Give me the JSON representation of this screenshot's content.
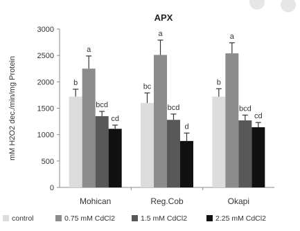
{
  "chart_data": {
    "type": "bar",
    "title": "APX",
    "ylabel": "mM H2O2 dec./min/mg Protein",
    "xlabel": "",
    "ylim": [
      0,
      3000
    ],
    "yticks": [
      0,
      500,
      1000,
      1500,
      2000,
      2500,
      3000
    ],
    "categories": [
      "Mohican",
      "Reg.Cob",
      "Okapi"
    ],
    "grid": false,
    "legend_position": "bottom",
    "series": [
      {
        "name": "control",
        "color": "#dcdcdc",
        "values": [
          1720,
          1600,
          1720
        ],
        "errors": [
          140,
          190,
          150
        ],
        "labels": [
          "b",
          "bc",
          "b"
        ]
      },
      {
        "name": "0.75 mM CdCl2",
        "color": "#8c8c8c",
        "values": [
          2250,
          2510,
          2540
        ],
        "errors": [
          240,
          280,
          200
        ],
        "labels": [
          "a",
          "a",
          "a"
        ]
      },
      {
        "name": "1.5 mM CdCl2",
        "color": "#585858",
        "values": [
          1350,
          1280,
          1270
        ],
        "errors": [
          90,
          110,
          100
        ],
        "labels": [
          "bcd",
          "bcd",
          "bcd"
        ]
      },
      {
        "name": "2.25 mM CdCl2",
        "color": "#111111",
        "values": [
          1110,
          880,
          1140
        ],
        "errors": [
          70,
          150,
          90
        ],
        "labels": [
          "cd",
          "d",
          "cd"
        ]
      }
    ]
  }
}
